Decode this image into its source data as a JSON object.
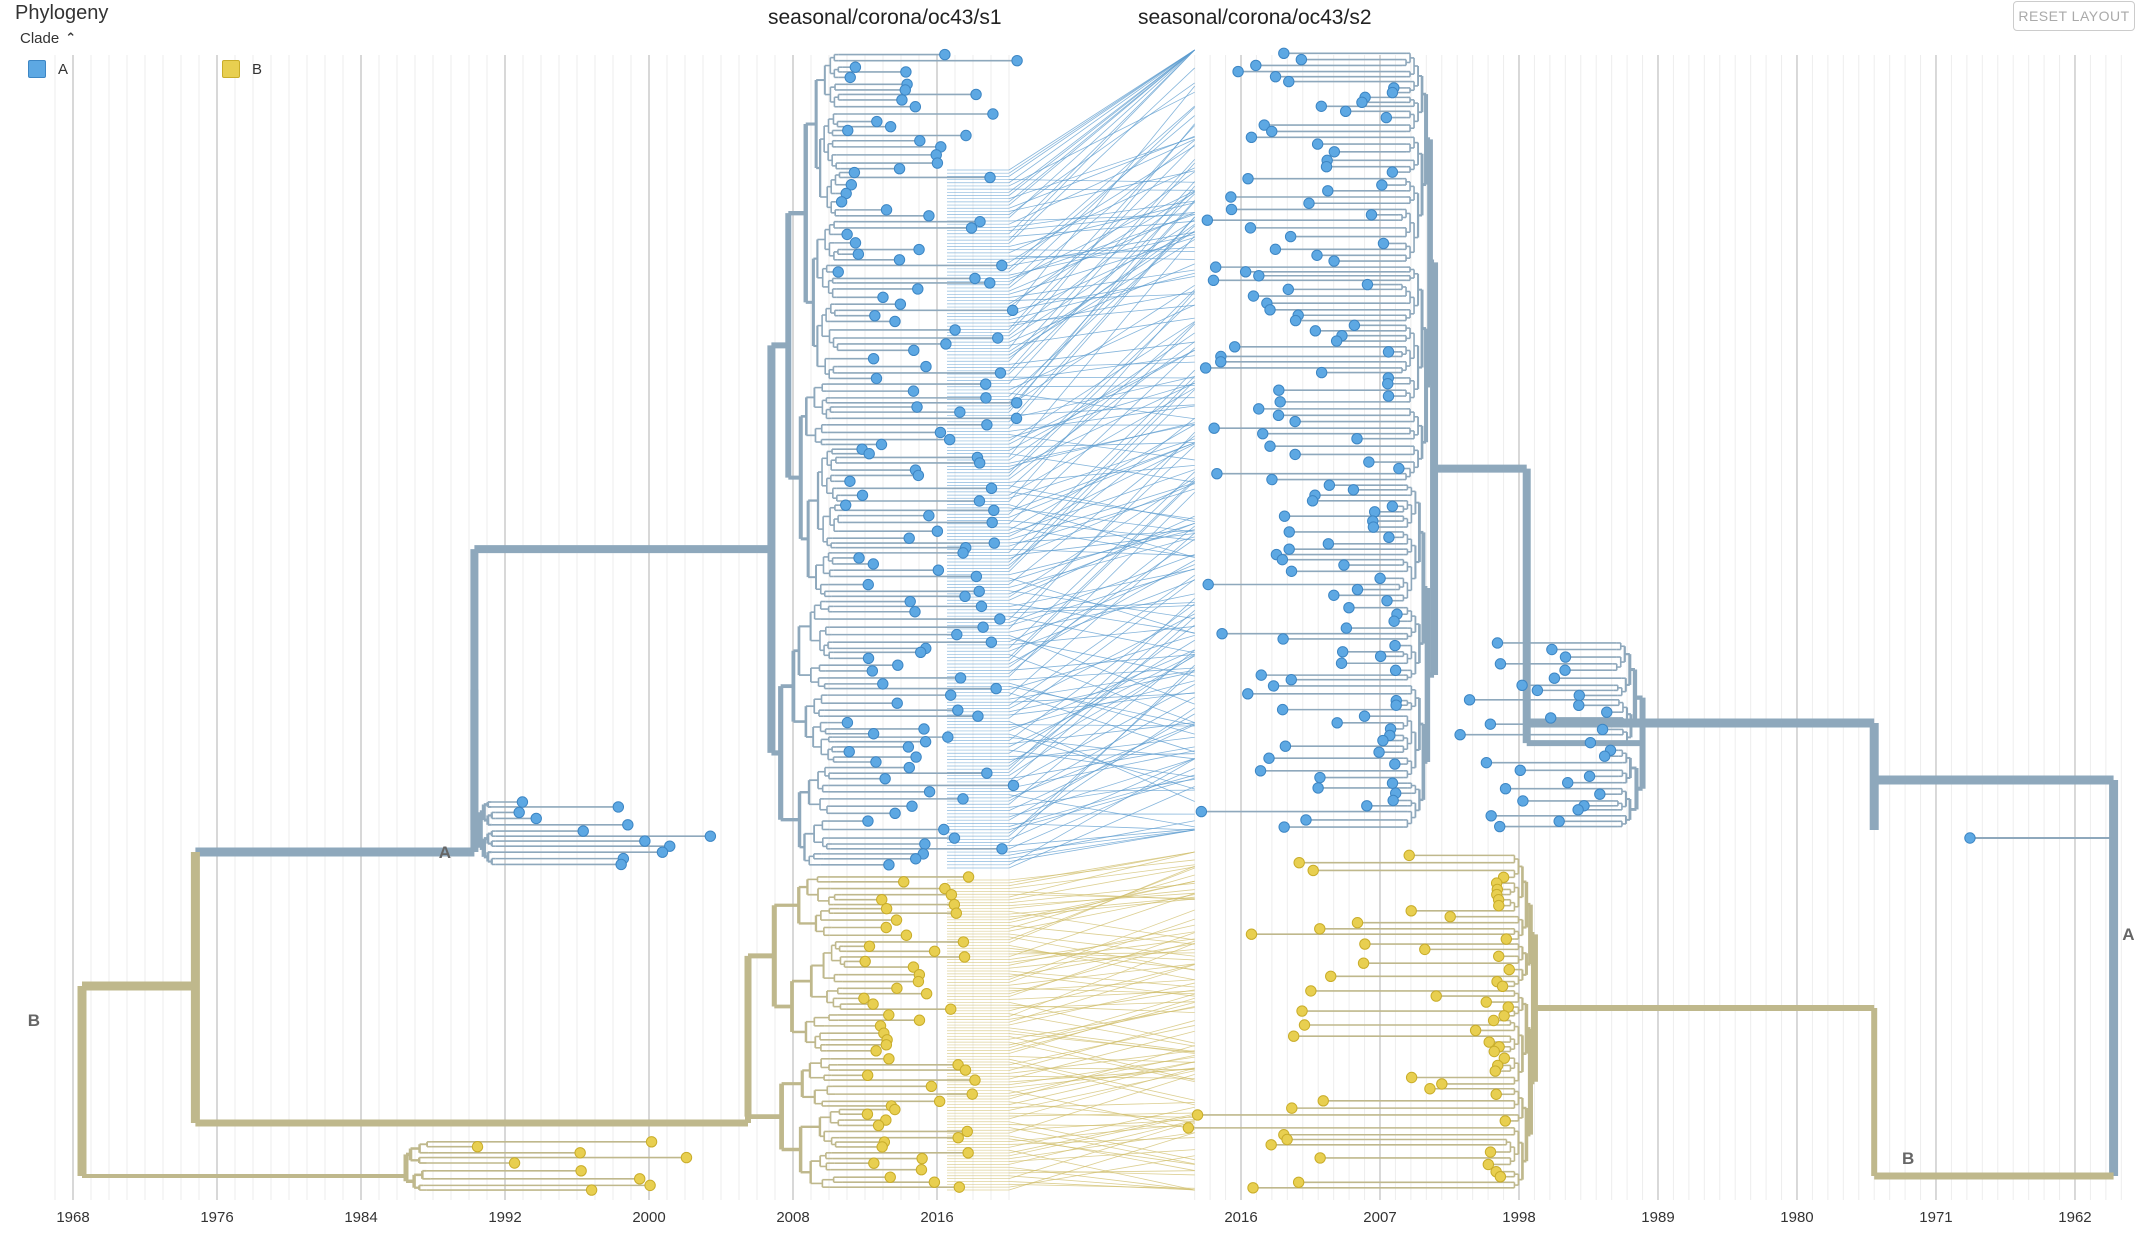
{
  "header": {
    "panel_title": "Phylogeny",
    "legend_toggle": "Clade",
    "reset_label": "RESET LAYOUT",
    "tree_left_title": "seasonal/corona/oc43/s1",
    "tree_right_title": "seasonal/corona/oc43/s2"
  },
  "legend": [
    {
      "label": "A",
      "color": "#5DA8E3"
    },
    {
      "label": "B",
      "color": "#E8CF50"
    }
  ],
  "chart_data": [
    {
      "type": "phylogenetic-tree",
      "title": "seasonal/corona/oc43/s1",
      "axis": "x",
      "axis_direction": "left-to-right",
      "tick_labels": [
        "1968",
        "1976",
        "1984",
        "1992",
        "2000",
        "2008",
        "2016"
      ],
      "axis_range": [
        1967,
        2020
      ],
      "grid": true,
      "clades": [
        {
          "name": "A",
          "color": "#5DA8E3",
          "branch_color": "#8EA8BC",
          "root_date": 1993.3,
          "tip_date_range": [
            1990.5,
            2019.8
          ]
        },
        {
          "name": "B",
          "color": "#E8CF50",
          "branch_color": "#BFB88C",
          "root_date": 1968.5,
          "tip_date_range": [
            1988.5,
            2018.3
          ]
        }
      ],
      "branch_labels": [
        {
          "text": "A",
          "branch": "clade-A"
        },
        {
          "text": "B",
          "branch": "clade-B"
        }
      ]
    },
    {
      "type": "phylogenetic-tree",
      "title": "seasonal/corona/oc43/s2",
      "axis": "x",
      "axis_direction": "right-to-left",
      "tick_labels": [
        "2016",
        "2007",
        "1998",
        "1989",
        "1980",
        "1971",
        "1962"
      ],
      "axis_range": [
        2019,
        1958
      ],
      "grid": true,
      "clades": [
        {
          "name": "A",
          "color": "#5DA8E3",
          "branch_color": "#8EA8BC",
          "root_date": 1959.5,
          "tip_date_range": [
            1968.8,
            2017.3
          ]
        },
        {
          "name": "B",
          "color": "#E8CF50",
          "branch_color": "#BFB88C",
          "root_date": 1959.5,
          "tip_date_range": [
            1984.5,
            2017.3
          ]
        }
      ],
      "branch_labels": [
        {
          "text": "A",
          "branch": "clade-A"
        },
        {
          "text": "B",
          "branch": "clade-B"
        }
      ]
    }
  ],
  "tanglegram": {
    "connections_A": 220,
    "connections_B": 110
  }
}
